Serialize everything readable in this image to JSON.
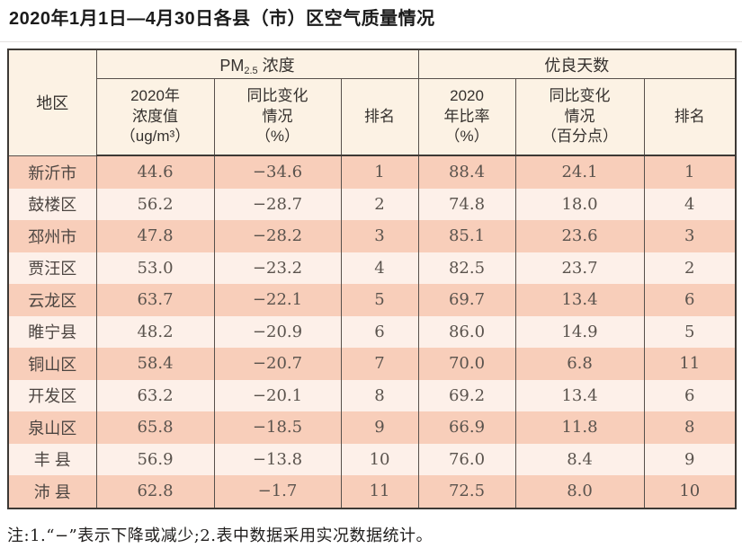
{
  "page": {
    "title": "2020年1月1日—4月30日各县（市）区空气质量情况",
    "note": "注:1.“−”表示下降或减少;2.表中数据采用实况数据统计。"
  },
  "colors": {
    "row_dark": "#f8ceba",
    "row_light": "#fdf0e9",
    "header_bg": "#fcf2e4",
    "inner_border": "#57504b",
    "outer_border": "#3d3935"
  },
  "table": {
    "corner_header": "地区",
    "group_pm": {
      "prefix": "PM",
      "subscript": "2.5",
      "suffix": " 浓度"
    },
    "group_days": "优良天数",
    "sub_headers": {
      "pm_value": "2020年\n浓度值\n（ug/m³）",
      "pm_change": "同比变化\n情况\n（%）",
      "pm_rank": "排名",
      "days_ratio": "2020\n年比率\n（%）",
      "days_change": "同比变化\n情况\n（百分点）",
      "days_rank": "排名"
    },
    "columns": [
      "region",
      "pm_value",
      "pm_change",
      "pm_rank",
      "days_ratio",
      "days_change",
      "days_rank"
    ],
    "rows": [
      {
        "region": "新沂市",
        "pm_value": "44.6",
        "pm_change": "−34.6",
        "pm_rank": "1",
        "days_ratio": "88.4",
        "days_change": "24.1",
        "days_rank": "1"
      },
      {
        "region": "鼓楼区",
        "pm_value": "56.2",
        "pm_change": "−28.7",
        "pm_rank": "2",
        "days_ratio": "74.8",
        "days_change": "18.0",
        "days_rank": "4"
      },
      {
        "region": "邳州市",
        "pm_value": "47.8",
        "pm_change": "−28.2",
        "pm_rank": "3",
        "days_ratio": "85.1",
        "days_change": "23.6",
        "days_rank": "3"
      },
      {
        "region": "贾汪区",
        "pm_value": "53.0",
        "pm_change": "−23.2",
        "pm_rank": "4",
        "days_ratio": "82.5",
        "days_change": "23.7",
        "days_rank": "2"
      },
      {
        "region": "云龙区",
        "pm_value": "63.7",
        "pm_change": "−22.1",
        "pm_rank": "5",
        "days_ratio": "69.7",
        "days_change": "13.4",
        "days_rank": "6"
      },
      {
        "region": "睢宁县",
        "pm_value": "48.2",
        "pm_change": "−20.9",
        "pm_rank": "6",
        "days_ratio": "86.0",
        "days_change": "14.9",
        "days_rank": "5"
      },
      {
        "region": "铜山区",
        "pm_value": "58.4",
        "pm_change": "−20.7",
        "pm_rank": "7",
        "days_ratio": "70.0",
        "days_change": "6.8",
        "days_rank": "11"
      },
      {
        "region": "开发区",
        "pm_value": "63.2",
        "pm_change": "−20.1",
        "pm_rank": "8",
        "days_ratio": "69.2",
        "days_change": "13.4",
        "days_rank": "6"
      },
      {
        "region": "泉山区",
        "pm_value": "65.8",
        "pm_change": "−18.5",
        "pm_rank": "9",
        "days_ratio": "66.9",
        "days_change": "11.8",
        "days_rank": "8"
      },
      {
        "region": "丰 县",
        "pm_value": "56.9",
        "pm_change": "−13.8",
        "pm_rank": "10",
        "days_ratio": "76.0",
        "days_change": "8.4",
        "days_rank": "9"
      },
      {
        "region": "沛 县",
        "pm_value": "62.8",
        "pm_change": "−1.7",
        "pm_rank": "11",
        "days_ratio": "72.5",
        "days_change": "8.0",
        "days_rank": "10"
      }
    ]
  }
}
